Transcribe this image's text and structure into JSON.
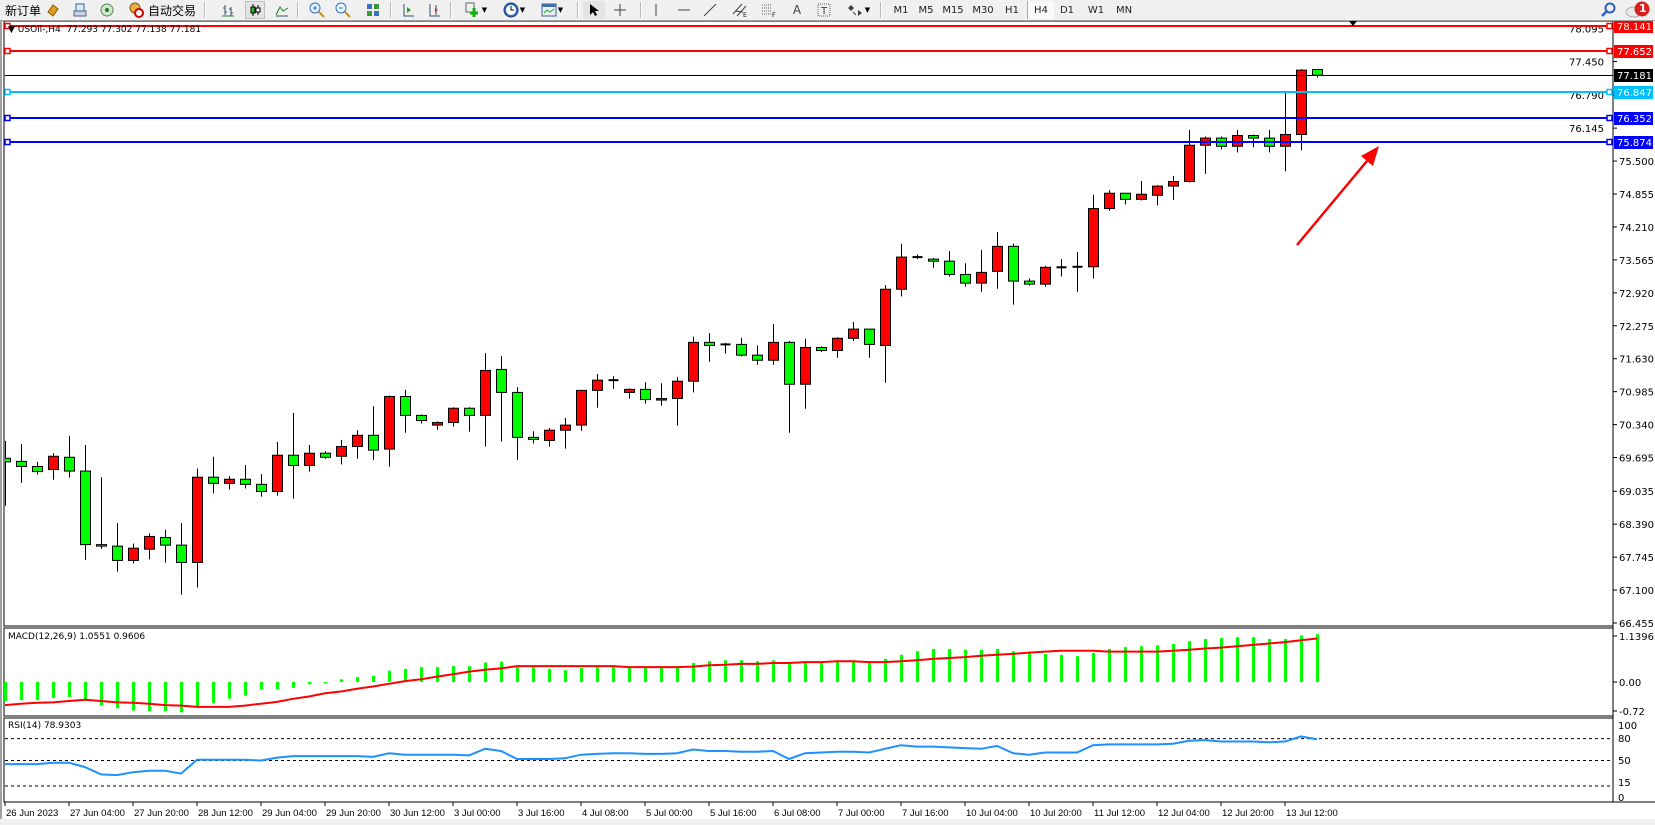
{
  "toolbar": {
    "new_order_label": "新订单",
    "auto_trading_label": "自动交易",
    "icons": [
      "metaeditor-icon",
      "terminal-icon",
      "signals-icon",
      "auto-trading-icon",
      "bar-chart-icon",
      "candlestick-chart-icon",
      "line-chart-icon",
      "zoom-in-icon",
      "zoom-out-icon",
      "tile-windows-icon",
      "auto-scroll-icon",
      "chart-shift-icon",
      "indicators-icon",
      "periods-icon",
      "templates-icon",
      "cursor-icon",
      "crosshair-icon",
      "vertical-line-icon",
      "horizontal-line-icon",
      "trendline-icon",
      "equidistant-channel-icon",
      "fibonacci-icon",
      "text-icon",
      "text-label-icon",
      "arrows-icon",
      "search-icon",
      "notifications-icon"
    ],
    "timeframes": [
      "M1",
      "M5",
      "M15",
      "M30",
      "H1",
      "H4",
      "D1",
      "W1",
      "MN"
    ],
    "active_timeframe": "H4",
    "notification_count": "1"
  },
  "chart": {
    "symbol_label": "USOil-,H4",
    "ohlc_text": "77.293 77.302 77.138 77.181"
  },
  "indicators": {
    "macd_label": "MACD(12,26,9) 1.0551 0.9606",
    "rsi_label": "RSI(14) 78.9303"
  },
  "annotation": {
    "arrow_color": "#ff0000"
  },
  "chart_data": [
    {
      "type": "candlestick",
      "symbol": "USOil-",
      "timeframe": "H4",
      "bull_color": "#ff0000",
      "bear_color": "#00ff00",
      "candle_fields": [
        "open",
        "high",
        "low",
        "close"
      ],
      "candles": [
        [
          69.68,
          70.02,
          68.75,
          69.61
        ],
        [
          69.62,
          69.96,
          69.2,
          69.52
        ],
        [
          69.52,
          69.61,
          69.36,
          69.42
        ],
        [
          69.46,
          69.78,
          69.26,
          69.72
        ],
        [
          69.7,
          70.12,
          69.3,
          69.43
        ],
        [
          69.43,
          69.94,
          67.69,
          67.99
        ],
        [
          67.99,
          69.31,
          67.91,
          67.96
        ],
        [
          67.96,
          68.41,
          67.46,
          67.68
        ],
        [
          67.68,
          68.01,
          67.62,
          67.92
        ],
        [
          67.9,
          68.21,
          67.7,
          68.15
        ],
        [
          68.13,
          68.28,
          67.64,
          67.98
        ],
        [
          67.98,
          68.41,
          67.01,
          67.64
        ],
        [
          67.64,
          69.48,
          67.15,
          69.31
        ],
        [
          69.31,
          69.71,
          68.99,
          69.19
        ],
        [
          69.19,
          69.33,
          69.07,
          69.27
        ],
        [
          69.27,
          69.55,
          69.09,
          69.17
        ],
        [
          69.17,
          69.37,
          68.93,
          69.03
        ],
        [
          69.03,
          70.0,
          68.95,
          69.74
        ],
        [
          69.74,
          70.57,
          68.89,
          69.54
        ],
        [
          69.54,
          69.94,
          69.42,
          69.78
        ],
        [
          69.78,
          69.82,
          69.67,
          69.7
        ],
        [
          69.72,
          70.04,
          69.56,
          69.91
        ],
        [
          69.91,
          70.23,
          69.67,
          70.13
        ],
        [
          70.13,
          70.7,
          69.65,
          69.84
        ],
        [
          69.86,
          70.91,
          69.52,
          70.89
        ],
        [
          70.89,
          71.02,
          70.18,
          70.52
        ],
        [
          70.52,
          70.54,
          70.36,
          70.42
        ],
        [
          70.33,
          70.4,
          70.24,
          70.38
        ],
        [
          70.38,
          70.68,
          70.3,
          70.66
        ],
        [
          70.66,
          70.68,
          70.2,
          70.52
        ],
        [
          70.52,
          71.74,
          69.91,
          71.4
        ],
        [
          71.42,
          71.68,
          70.01,
          70.97
        ],
        [
          70.97,
          71.07,
          69.65,
          70.09
        ],
        [
          70.09,
          70.21,
          69.97,
          70.05
        ],
        [
          70.03,
          70.27,
          69.91,
          70.23
        ],
        [
          70.23,
          70.47,
          69.87,
          70.33
        ],
        [
          70.33,
          71.01,
          70.22,
          71.01
        ],
        [
          71.01,
          71.33,
          70.67,
          71.21
        ],
        [
          71.21,
          71.29,
          71.04,
          71.21
        ],
        [
          70.97,
          71.05,
          70.85,
          71.03
        ],
        [
          71.03,
          71.17,
          70.75,
          70.83
        ],
        [
          70.82,
          71.15,
          70.71,
          70.85
        ],
        [
          70.85,
          71.27,
          70.32,
          71.19
        ],
        [
          71.19,
          72.06,
          70.97,
          71.95
        ],
        [
          71.95,
          72.13,
          71.57,
          71.89
        ],
        [
          71.91,
          71.94,
          71.73,
          71.91
        ],
        [
          71.91,
          72.04,
          71.67,
          71.7
        ],
        [
          71.7,
          71.89,
          71.51,
          71.6
        ],
        [
          71.6,
          72.31,
          71.51,
          71.95
        ],
        [
          71.95,
          71.98,
          70.18,
          71.13
        ],
        [
          71.13,
          72.02,
          70.65,
          71.85
        ],
        [
          71.85,
          71.87,
          71.76,
          71.79
        ],
        [
          71.79,
          72.05,
          71.65,
          72.03
        ],
        [
          72.03,
          72.35,
          71.98,
          72.21
        ],
        [
          72.21,
          72.21,
          71.65,
          71.91
        ],
        [
          71.89,
          73.07,
          71.16,
          72.99
        ],
        [
          72.99,
          73.88,
          72.85,
          73.62
        ],
        [
          73.62,
          73.67,
          73.58,
          73.62
        ],
        [
          73.58,
          73.6,
          73.41,
          73.54
        ],
        [
          73.54,
          73.74,
          73.24,
          73.28
        ],
        [
          73.28,
          73.5,
          73.04,
          73.11
        ],
        [
          73.11,
          73.76,
          72.94,
          73.32
        ],
        [
          73.34,
          74.11,
          73.0,
          73.83
        ],
        [
          73.83,
          73.88,
          72.69,
          73.15
        ],
        [
          73.15,
          73.2,
          73.06,
          73.09
        ],
        [
          73.09,
          73.45,
          73.04,
          73.42
        ],
        [
          73.42,
          73.58,
          73.24,
          73.42
        ],
        [
          73.42,
          73.72,
          72.94,
          73.43
        ],
        [
          73.43,
          74.84,
          73.2,
          74.57
        ],
        [
          74.57,
          74.93,
          74.53,
          74.87
        ],
        [
          74.87,
          74.87,
          74.65,
          74.75
        ],
        [
          74.75,
          75.11,
          74.73,
          74.85
        ],
        [
          74.83,
          75.03,
          74.63,
          75.01
        ],
        [
          75.01,
          75.21,
          74.74,
          75.1
        ],
        [
          75.1,
          76.11,
          75.08,
          75.81
        ],
        [
          75.81,
          75.98,
          75.25,
          75.95
        ],
        [
          75.95,
          75.98,
          75.73,
          75.79
        ],
        [
          75.79,
          76.11,
          75.67,
          76.0
        ],
        [
          76.0,
          76.02,
          75.77,
          75.95
        ],
        [
          75.95,
          76.11,
          75.67,
          75.79
        ],
        [
          75.79,
          76.87,
          75.3,
          76.02
        ],
        [
          76.02,
          77.3,
          75.71,
          77.28
        ],
        [
          77.293,
          77.302,
          77.138,
          77.181
        ]
      ],
      "price_ticks": [
        "66.455",
        "67.100",
        "67.745",
        "68.390",
        "69.035",
        "69.695",
        "70.340",
        "70.985",
        "71.630",
        "72.275",
        "72.920",
        "73.565",
        "74.210",
        "74.855",
        "75.500",
        "76.145",
        "76.790",
        "77.450",
        "78.095"
      ],
      "x_tick_labels": [
        "26 Jun 2023",
        "27 Jun 04:00",
        "27 Jun 20:00",
        "28 Jun 12:00",
        "29 Jun 04:00",
        "29 Jun 20:00",
        "30 Jun 12:00",
        "3 Jul 00:00",
        "3 Jul 16:00",
        "4 Jul 08:00",
        "5 Jul 00:00",
        "5 Jul 16:00",
        "6 Jul 08:00",
        "7 Jul 00:00",
        "7 Jul 16:00",
        "10 Jul 04:00",
        "10 Jul 20:00",
        "11 Jul 12:00",
        "12 Jul 04:00",
        "12 Jul 20:00",
        "13 Jul 12:00"
      ],
      "ylim": [
        66.455,
        78.141
      ],
      "current_price": {
        "value": 77.181,
        "label": "77.181",
        "color": "#000000"
      },
      "horizontal_lines": [
        {
          "value": 78.141,
          "label": "78.141",
          "color": "#ff0000"
        },
        {
          "value": 77.652,
          "label": "77.652",
          "color": "#ff0000"
        },
        {
          "value": 76.847,
          "label": "76.847",
          "color": "#00bfff"
        },
        {
          "value": 76.352,
          "label": "76.352",
          "color": "#0000ff"
        },
        {
          "value": 75.874,
          "label": "75.874",
          "color": "#0000ff"
        }
      ],
      "grid": false
    },
    {
      "type": "bar",
      "indicator": "MACD(12,26,9)",
      "histogram_color": "#00ff00",
      "signal_color": "#ff0000",
      "axis_labels": [
        {
          "value": 1.1396,
          "label": "1.1396"
        },
        {
          "value": 0,
          "label": "0.00"
        },
        {
          "value": -0.72,
          "label": "-0.72"
        }
      ],
      "ylim": [
        -0.72,
        1.1396
      ],
      "macd": [
        -0.42,
        -0.4,
        -0.4,
        -0.35,
        -0.33,
        -0.4,
        -0.52,
        -0.58,
        -0.63,
        -0.64,
        -0.64,
        -0.67,
        -0.53,
        -0.46,
        -0.37,
        -0.3,
        -0.17,
        -0.16,
        -0.13,
        -0.05,
        -0.02,
        0.06,
        0.11,
        0.14,
        0.25,
        0.29,
        0.33,
        0.33,
        0.35,
        0.35,
        0.43,
        0.45,
        0.36,
        0.33,
        0.29,
        0.26,
        0.31,
        0.34,
        0.34,
        0.33,
        0.31,
        0.31,
        0.32,
        0.42,
        0.46,
        0.48,
        0.48,
        0.46,
        0.48,
        0.44,
        0.44,
        0.44,
        0.45,
        0.44,
        0.44,
        0.51,
        0.6,
        0.68,
        0.73,
        0.73,
        0.71,
        0.71,
        0.73,
        0.68,
        0.64,
        0.62,
        0.6,
        0.57,
        0.64,
        0.73,
        0.77,
        0.79,
        0.81,
        0.84,
        0.9,
        0.95,
        0.97,
        0.99,
        0.99,
        0.95,
        0.95,
        1.03,
        1.0551
      ],
      "signal": [
        -0.51,
        -0.48,
        -0.46,
        -0.45,
        -0.42,
        -0.39,
        -0.42,
        -0.45,
        -0.46,
        -0.48,
        -0.51,
        -0.52,
        -0.55,
        -0.55,
        -0.55,
        -0.52,
        -0.48,
        -0.44,
        -0.37,
        -0.32,
        -0.25,
        -0.21,
        -0.15,
        -0.1,
        -0.04,
        0.02,
        0.06,
        0.12,
        0.17,
        0.23,
        0.27,
        0.3,
        0.35,
        0.35,
        0.35,
        0.35,
        0.35,
        0.35,
        0.35,
        0.33,
        0.33,
        0.33,
        0.33,
        0.34,
        0.37,
        0.38,
        0.4,
        0.4,
        0.42,
        0.42,
        0.44,
        0.44,
        0.46,
        0.46,
        0.44,
        0.44,
        0.46,
        0.48,
        0.51,
        0.53,
        0.55,
        0.58,
        0.6,
        0.62,
        0.65,
        0.67,
        0.69,
        0.69,
        0.69,
        0.67,
        0.67,
        0.67,
        0.67,
        0.69,
        0.71,
        0.74,
        0.76,
        0.79,
        0.82,
        0.85,
        0.88,
        0.92,
        0.9606
      ]
    },
    {
      "type": "line",
      "indicator": "RSI(14)",
      "line_color": "#1e90ff",
      "ylim": [
        0,
        100
      ],
      "axis_labels": [
        "100",
        "80",
        "50",
        "15",
        "0"
      ],
      "levels": [
        80,
        50,
        15
      ],
      "values": [
        45,
        45,
        45,
        47,
        47,
        41,
        31,
        30,
        34,
        36,
        36,
        32,
        51,
        51,
        51,
        51,
        50,
        54,
        56,
        56,
        56,
        56,
        56,
        55,
        60,
        58,
        58,
        58,
        58,
        57,
        66,
        63,
        52,
        52,
        52,
        53,
        58,
        59,
        60,
        60,
        59,
        59,
        60,
        65,
        63,
        63,
        62,
        62,
        63,
        52,
        60,
        61,
        62,
        62,
        61,
        66,
        71,
        69,
        69,
        68,
        67,
        66,
        70,
        60,
        58,
        61,
        61,
        61,
        71,
        72,
        72,
        72,
        72,
        73,
        77,
        78,
        76,
        76,
        76,
        75,
        76,
        83,
        78.93
      ]
    }
  ]
}
